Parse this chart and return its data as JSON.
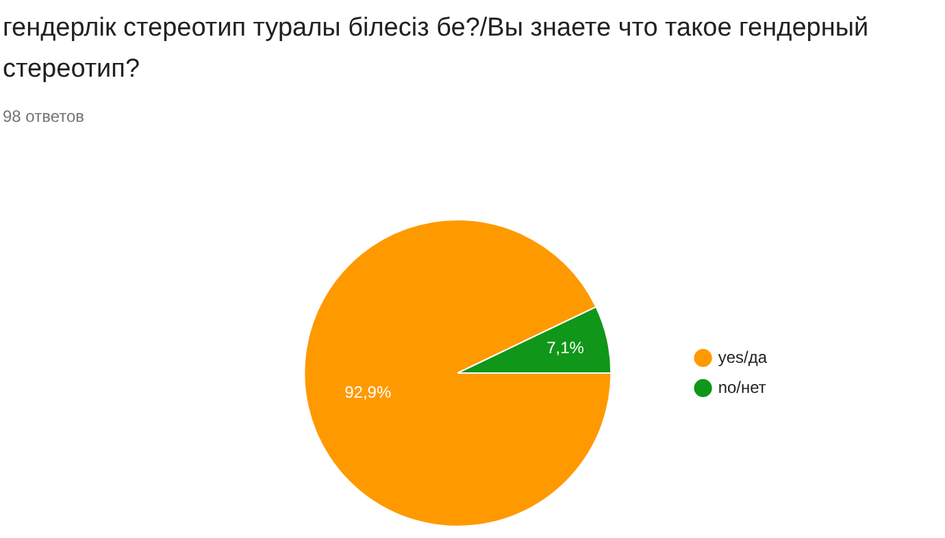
{
  "chart_data": {
    "type": "pie",
    "title": "гендерлік стереотип туралы білесіз бе?/Вы знаете что такое гендерный стереотип?",
    "subtitle": "98 ответов",
    "categories": [
      "yes/да",
      "no/нет"
    ],
    "values": [
      92.9,
      7.1
    ],
    "colors": [
      "#ff9900",
      "#109618"
    ],
    "value_labels": [
      "92,9%",
      "7,1%"
    ],
    "legend": "right"
  }
}
